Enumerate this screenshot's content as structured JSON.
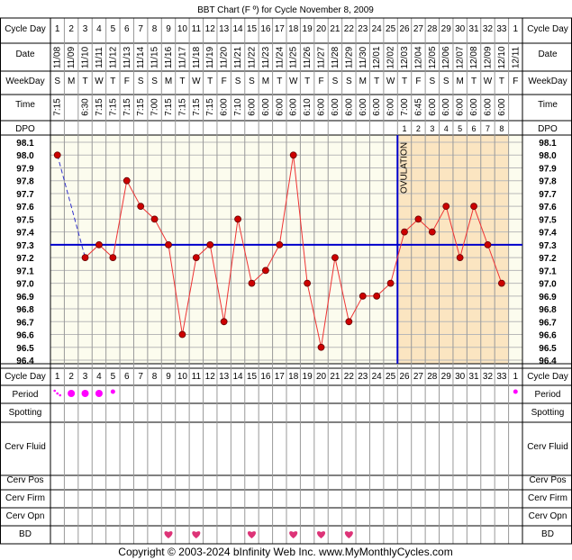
{
  "title": "BBT Chart (F º) for Cycle November 8, 2009",
  "row_labels": {
    "cycle_day": "Cycle Day",
    "date": "Date",
    "weekday": "WeekDay",
    "time": "Time",
    "dpo": "DPO",
    "period": "Period",
    "spotting": "Spotting",
    "cerv_fluid": "Cerv Fluid",
    "cerv_pos": "Cerv Pos",
    "cerv_firm": "Cerv Firm",
    "cerv_opn": "Cerv Opn",
    "bd": "BD"
  },
  "ovulation_label": "OVULATION",
  "footer": "Copyright © 2003-2024 bInfinity Web Inc.     www.MyMonthlyCycles.com",
  "colors": {
    "grid_bg": "#fcfcee",
    "luteal_bg": "#fbe5c1",
    "header_bg": "#ffffff",
    "line": "#ee3333",
    "dot": "#cc0000",
    "coverline": "#0000cc",
    "ovulation_line": "#0000cc",
    "period_dot": "#ff00ff",
    "heart": "#dd3377"
  },
  "chart_data": {
    "type": "line",
    "cycle_days": [
      1,
      2,
      3,
      4,
      5,
      6,
      7,
      8,
      9,
      10,
      11,
      12,
      13,
      14,
      15,
      16,
      17,
      18,
      19,
      20,
      21,
      22,
      23,
      24,
      25,
      26,
      27,
      28,
      29,
      30,
      31,
      32,
      33,
      1
    ],
    "dates": [
      "11/08",
      "11/09",
      "11/10",
      "11/11",
      "11/12",
      "11/13",
      "11/14",
      "11/15",
      "11/16",
      "11/17",
      "11/18",
      "11/19",
      "11/20",
      "11/21",
      "11/22",
      "11/23",
      "11/24",
      "11/25",
      "11/26",
      "11/27",
      "11/28",
      "11/29",
      "11/30",
      "12/01",
      "12/02",
      "12/03",
      "12/04",
      "12/05",
      "12/06",
      "12/07",
      "12/08",
      "12/09",
      "12/10",
      "12/11"
    ],
    "weekdays": [
      "S",
      "M",
      "T",
      "W",
      "T",
      "F",
      "S",
      "S",
      "M",
      "T",
      "W",
      "T",
      "F",
      "S",
      "S",
      "M",
      "T",
      "W",
      "T",
      "F",
      "S",
      "S",
      "M",
      "T",
      "W",
      "T",
      "F",
      "S",
      "S",
      "M",
      "T",
      "W",
      "T",
      "F"
    ],
    "times": [
      "7:15",
      "",
      "6:30",
      "7:15",
      "7:15",
      "7:15",
      "7:15",
      "7:00",
      "7:15",
      "7:15",
      "7:15",
      "7:15",
      "6:00",
      "7:10",
      "6:00",
      "6:00",
      "6:00",
      "6:00",
      "6:10",
      "6:00",
      "6:00",
      "6:00",
      "6:00",
      "6:00",
      "6:00",
      "7:00",
      "6:45",
      "6:00",
      "6:00",
      "6:00",
      "6:00",
      "6:00",
      "6:00",
      ""
    ],
    "dpo": [
      "",
      "",
      "",
      "",
      "",
      "",
      "",
      "",
      "",
      "",
      "",
      "",
      "",
      "",
      "",
      "",
      "",
      "",
      "",
      "",
      "",
      "",
      "",
      "",
      "",
      "1",
      "2",
      "3",
      "4",
      "5",
      "6",
      "7",
      "8",
      ""
    ],
    "temperatures": [
      98.0,
      null,
      97.2,
      97.3,
      97.2,
      97.8,
      97.6,
      97.5,
      97.3,
      96.6,
      97.2,
      97.3,
      96.7,
      97.5,
      97.0,
      97.1,
      97.3,
      98.0,
      97.0,
      96.5,
      97.2,
      96.7,
      96.9,
      96.9,
      97.0,
      97.4,
      97.5,
      97.4,
      97.6,
      97.2,
      97.6,
      97.3,
      97.0,
      null
    ],
    "y_ticks": [
      "98.1",
      "98.0",
      "97.9",
      "97.8",
      "97.7",
      "97.6",
      "97.5",
      "97.4",
      "97.3",
      "97.2",
      "97.1",
      "97.0",
      "96.9",
      "96.8",
      "96.7",
      "96.6",
      "96.5",
      "96.4"
    ],
    "ylim": [
      96.4,
      98.1
    ],
    "coverline": 97.3,
    "ovulation_day": 25,
    "luteal_start_day": 26,
    "luteal_end_day": 33,
    "period": [
      "small",
      "heavy",
      "heavy",
      "heavy",
      "light",
      "",
      "",
      "",
      "",
      "",
      "",
      "",
      "",
      "",
      "",
      "",
      "",
      "",
      "",
      "",
      "",
      "",
      "",
      "",
      "",
      "",
      "",
      "",
      "",
      "",
      "",
      "",
      "",
      "light"
    ],
    "bd_days": [
      9,
      11,
      15,
      18,
      20,
      22
    ]
  }
}
